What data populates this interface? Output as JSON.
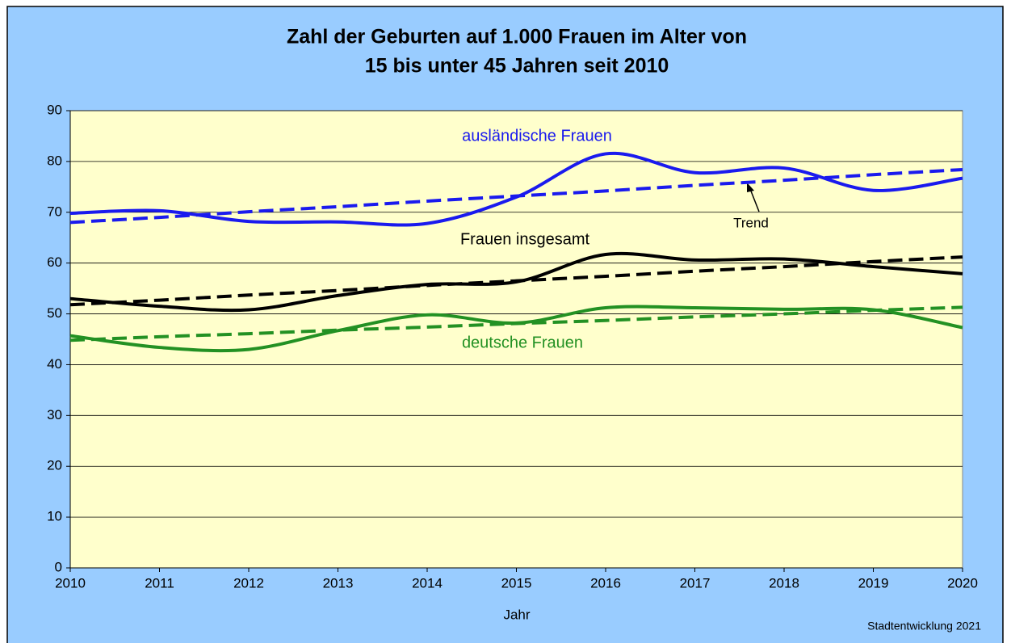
{
  "chart_data": {
    "type": "line",
    "title": [
      "Zahl der Geburten auf 1.000 Frauen im Alter von",
      "15 bis unter 45 Jahren seit 2010"
    ],
    "x_label": "Jahr",
    "source": "Stadtentwicklung 2021",
    "x": [
      2010,
      2011,
      2012,
      2013,
      2014,
      2015,
      2016,
      2017,
      2018,
      2019,
      2020
    ],
    "xlim": [
      2010,
      2020
    ],
    "xticks": [
      2010,
      2011,
      2012,
      2013,
      2014,
      2015,
      2016,
      2017,
      2018,
      2019,
      2020
    ],
    "ylim": [
      0,
      90
    ],
    "yticks": [
      0,
      10,
      20,
      30,
      40,
      50,
      60,
      70,
      80,
      90
    ],
    "grid": true,
    "smooth": true,
    "series": [
      {
        "name": "ausländische Frauen",
        "color": "#1a1aee",
        "values": [
          69.8,
          70.3,
          68.2,
          68.1,
          67.8,
          73.0,
          81.5,
          77.8,
          78.7,
          74.3,
          76.7
        ]
      },
      {
        "color": "#1a1aee",
        "style": "dashed",
        "values": [
          68.0,
          69.0,
          70.1,
          71.1,
          72.2,
          73.2,
          74.2,
          75.3,
          76.3,
          77.4,
          78.4
        ]
      },
      {
        "name": "Frauen insgesamt",
        "color": "#000000",
        "values": [
          53.0,
          51.5,
          50.8,
          53.6,
          55.8,
          56.3,
          61.7,
          60.6,
          60.8,
          59.3,
          57.9
        ]
      },
      {
        "color": "#000000",
        "style": "dashed",
        "values": [
          51.8,
          52.7,
          53.7,
          54.6,
          55.6,
          56.5,
          57.4,
          58.4,
          59.3,
          60.3,
          61.2
        ]
      },
      {
        "name": "deutsche Frauen",
        "color": "#239123",
        "values": [
          45.7,
          43.4,
          43.0,
          46.7,
          49.8,
          48.2,
          51.2,
          51.2,
          50.9,
          50.8,
          47.3
        ]
      },
      {
        "color": "#239123",
        "style": "dashed",
        "values": [
          44.8,
          45.5,
          46.1,
          46.8,
          47.4,
          48.1,
          48.7,
          49.4,
          50.0,
          50.7,
          51.3
        ]
      }
    ],
    "annotations": [
      "Trend"
    ]
  }
}
